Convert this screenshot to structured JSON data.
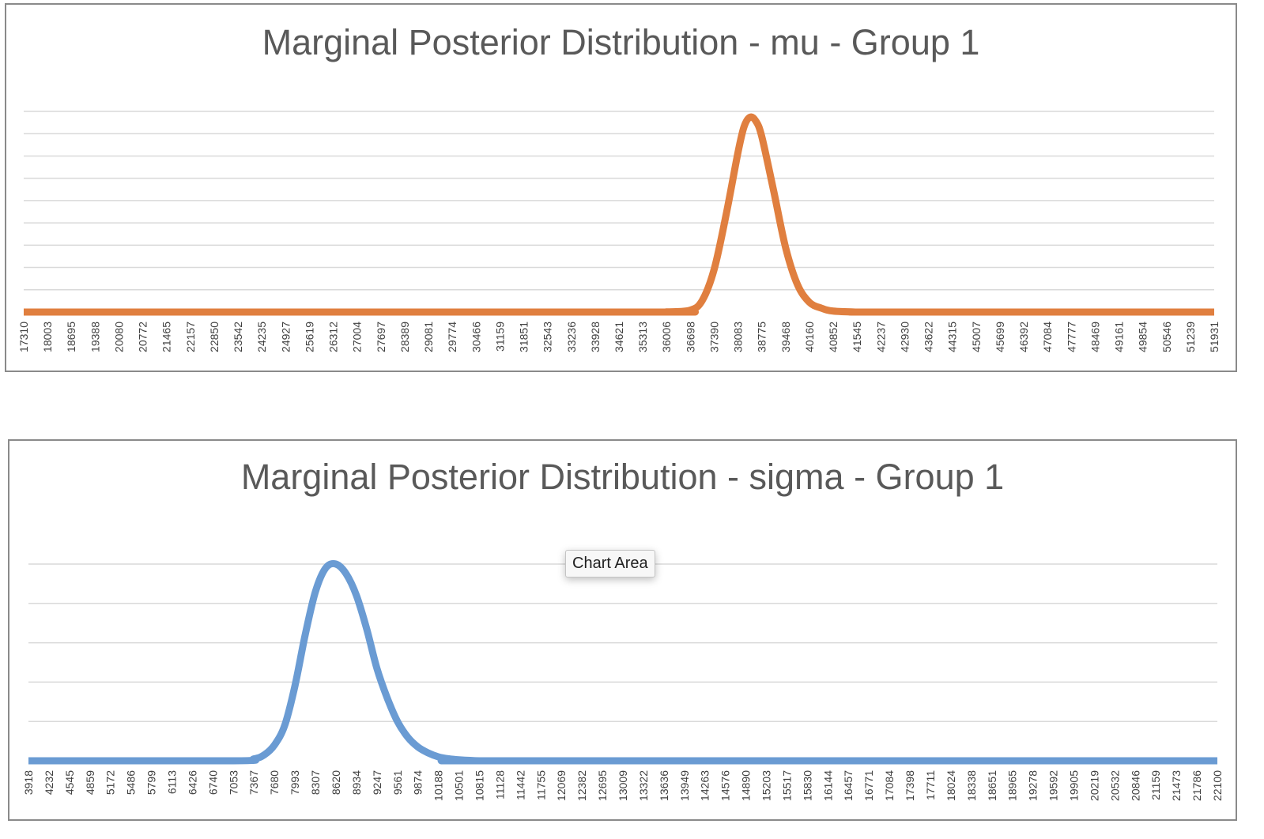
{
  "chart_data": [
    {
      "type": "line",
      "title": "Marginal Posterior Distribution - mu - Group 1",
      "xlabel": "",
      "ylabel": "",
      "y_axis_labels_shown": false,
      "grid": true,
      "legend": "none",
      "x_ticks": [
        "17310",
        "18003",
        "18695",
        "19388",
        "20080",
        "20772",
        "21465",
        "22157",
        "22850",
        "23542",
        "24235",
        "24927",
        "25619",
        "26312",
        "27004",
        "27697",
        "28389",
        "29081",
        "29774",
        "30466",
        "31159",
        "31851",
        "32543",
        "33236",
        "33928",
        "34621",
        "35313",
        "36006",
        "36698",
        "37390",
        "38083",
        "38775",
        "39468",
        "40160",
        "40852",
        "41545",
        "42237",
        "42930",
        "43622",
        "44315",
        "45007",
        "45699",
        "46392",
        "47084",
        "47777",
        "48469",
        "49161",
        "49854",
        "50546",
        "51239",
        "51931"
      ],
      "x": [
        17310,
        35313,
        36006,
        36698,
        37044,
        37390,
        37737,
        38083,
        38256,
        38429,
        38602,
        38775,
        39122,
        39468,
        39814,
        40160,
        40506,
        40852,
        41545,
        42237,
        51931
      ],
      "series": [
        {
          "values": [
            0,
            0,
            0.001,
            0.01,
            0.06,
            0.22,
            0.5,
            0.82,
            0.95,
            1.0,
            0.98,
            0.9,
            0.62,
            0.33,
            0.14,
            0.05,
            0.02,
            0.005,
            0,
            0,
            0
          ],
          "color": "#E07F3F"
        }
      ],
      "ylim": [
        0,
        1.03
      ],
      "grid_lines": 9
    },
    {
      "type": "line",
      "title": "Marginal Posterior Distribution - sigma - Group 1",
      "xlabel": "",
      "ylabel": "",
      "y_axis_labels_shown": false,
      "grid": true,
      "legend": "none",
      "x_ticks": [
        "3918",
        "4232",
        "4545",
        "4859",
        "5172",
        "5486",
        "5799",
        "6113",
        "6426",
        "6740",
        "7053",
        "7367",
        "7680",
        "7993",
        "8307",
        "8620",
        "8934",
        "9247",
        "9561",
        "9874",
        "10188",
        "10501",
        "10815",
        "11128",
        "11442",
        "11755",
        "12069",
        "12382",
        "12695",
        "13009",
        "13322",
        "13636",
        "13949",
        "14263",
        "14576",
        "14890",
        "15203",
        "15517",
        "15830",
        "16144",
        "16457",
        "16771",
        "17084",
        "17398",
        "17711",
        "18024",
        "18338",
        "18651",
        "18965",
        "19278",
        "19592",
        "19905",
        "20219",
        "20532",
        "20846",
        "21159",
        "21473",
        "21786",
        "22100"
      ],
      "x": [
        3918,
        7053,
        7367,
        7524,
        7680,
        7837,
        7993,
        8150,
        8307,
        8464,
        8620,
        8777,
        8934,
        9091,
        9247,
        9404,
        9561,
        9718,
        9874,
        10031,
        10188,
        10345,
        10501,
        10815,
        11128,
        22100
      ],
      "series": [
        {
          "values": [
            0,
            0,
            0.01,
            0.03,
            0.08,
            0.18,
            0.38,
            0.64,
            0.86,
            0.98,
            1.0,
            0.95,
            0.84,
            0.67,
            0.47,
            0.32,
            0.2,
            0.12,
            0.07,
            0.04,
            0.02,
            0.01,
            0.005,
            0,
            0,
            0
          ],
          "color": "#6A9BD3"
        }
      ],
      "ylim": [
        0,
        1.0
      ],
      "grid_lines": 5
    }
  ],
  "tooltip": {
    "label": "Chart Area"
  }
}
